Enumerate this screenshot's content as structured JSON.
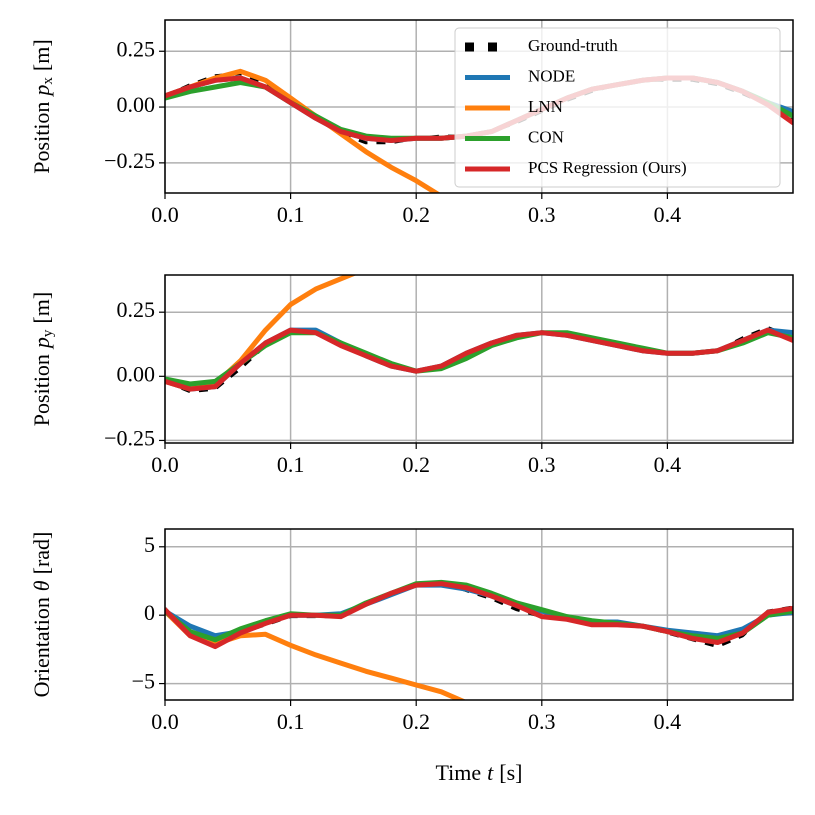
{
  "chart_data": [
    {
      "type": "line",
      "ylabel": {
        "text": "Position",
        "symbol": "p",
        "subscript": "x",
        "unit": "[m]"
      },
      "x": [
        0,
        0.02,
        0.04,
        0.06,
        0.08,
        0.1,
        0.12,
        0.14,
        0.16,
        0.18,
        0.2,
        0.22,
        0.24,
        0.26,
        0.28,
        0.3,
        0.32,
        0.34,
        0.36,
        0.38,
        0.4,
        0.42,
        0.44,
        0.46,
        0.48,
        0.5
      ],
      "xlim": [
        0,
        0.5
      ],
      "ylim": [
        -0.385,
        0.39
      ],
      "xticks": [
        {
          "value": 0,
          "label": "0.0"
        },
        0.1,
        0.2,
        0.3,
        0.4
      ],
      "yticks": [
        {
          "value": -0.25,
          "label": "−0.25"
        },
        {
          "value": 0,
          "label": "0.00"
        },
        0.25
      ],
      "grid": true,
      "legend": "upper right",
      "series": [
        {
          "name": "Ground-truth",
          "color": "#000000",
          "dashed": true,
          "values": [
            0.05,
            0.1,
            0.14,
            0.15,
            0.1,
            0.02,
            -0.05,
            -0.12,
            -0.16,
            -0.16,
            -0.14,
            -0.13,
            -0.13,
            -0.11,
            -0.07,
            -0.02,
            0.03,
            0.07,
            0.1,
            0.12,
            0.12,
            0.12,
            0.1,
            0.06,
            0.01,
            -0.06
          ]
        },
        {
          "name": "NODE",
          "color": "#1f77b4",
          "values": [
            0.05,
            0.09,
            0.12,
            0.13,
            0.09,
            0.02,
            -0.05,
            -0.11,
            -0.14,
            -0.15,
            -0.14,
            -0.14,
            -0.13,
            -0.11,
            -0.06,
            -0.01,
            0.04,
            0.08,
            0.1,
            0.12,
            0.13,
            0.13,
            0.11,
            0.07,
            0.02,
            -0.02
          ]
        },
        {
          "name": "LNN",
          "color": "#ff7f0e",
          "values": [
            0.05,
            0.09,
            0.13,
            0.16,
            0.12,
            0.04,
            -0.04,
            -0.12,
            -0.2,
            -0.27,
            -0.33,
            -0.4,
            null,
            null,
            null,
            null,
            null,
            null,
            null,
            null,
            null,
            null,
            null,
            null,
            null,
            null
          ]
        },
        {
          "name": "CON",
          "color": "#2ca02c",
          "values": [
            0.04,
            0.07,
            0.09,
            0.11,
            0.09,
            0.02,
            -0.04,
            -0.1,
            -0.13,
            -0.14,
            -0.14,
            -0.14,
            -0.13,
            -0.11,
            -0.06,
            -0.01,
            0.04,
            0.08,
            0.1,
            0.12,
            0.13,
            0.13,
            0.11,
            0.07,
            0.02,
            -0.04
          ]
        },
        {
          "name": "PCS Regression (Ours)",
          "color": "#d62728",
          "values": [
            0.05,
            0.09,
            0.12,
            0.13,
            0.09,
            0.02,
            -0.05,
            -0.11,
            -0.14,
            -0.15,
            -0.14,
            -0.14,
            -0.13,
            -0.11,
            -0.06,
            -0.01,
            0.04,
            0.08,
            0.1,
            0.12,
            0.13,
            0.13,
            0.11,
            0.07,
            0.01,
            -0.07
          ]
        }
      ]
    },
    {
      "type": "line",
      "ylabel": {
        "text": "Position",
        "symbol": "p",
        "subscript": "y",
        "unit": "[m]"
      },
      "x": [
        0,
        0.02,
        0.04,
        0.06,
        0.08,
        0.1,
        0.12,
        0.14,
        0.16,
        0.18,
        0.2,
        0.22,
        0.24,
        0.26,
        0.28,
        0.3,
        0.32,
        0.34,
        0.36,
        0.38,
        0.4,
        0.42,
        0.44,
        0.46,
        0.48,
        0.5
      ],
      "xlim": [
        0,
        0.5
      ],
      "ylim": [
        -0.26,
        0.395
      ],
      "xticks": [
        {
          "value": 0,
          "label": "0.0"
        },
        0.1,
        0.2,
        0.3,
        0.4
      ],
      "yticks": [
        {
          "value": -0.25,
          "label": "−0.25"
        },
        {
          "value": 0,
          "label": "0.00"
        },
        0.25
      ],
      "grid": true,
      "series": [
        {
          "name": "Ground-truth",
          "color": "#000000",
          "dashed": true,
          "values": [
            -0.02,
            -0.06,
            -0.05,
            0.03,
            0.12,
            0.18,
            0.17,
            0.12,
            0.08,
            0.04,
            0.02,
            0.04,
            0.09,
            0.13,
            0.16,
            0.17,
            0.16,
            0.14,
            0.12,
            0.1,
            0.09,
            0.09,
            0.1,
            0.15,
            0.19,
            0.15
          ]
        },
        {
          "name": "NODE",
          "color": "#1f77b4",
          "values": [
            -0.02,
            -0.05,
            -0.04,
            0.05,
            0.13,
            0.18,
            0.18,
            0.13,
            0.08,
            0.04,
            0.02,
            0.04,
            0.09,
            0.13,
            0.16,
            0.17,
            0.16,
            0.14,
            0.12,
            0.1,
            0.09,
            0.09,
            0.1,
            0.14,
            0.18,
            0.17
          ]
        },
        {
          "name": "LNN",
          "color": "#ff7f0e",
          "values": [
            -0.02,
            -0.05,
            -0.03,
            0.06,
            0.18,
            0.28,
            0.34,
            0.38,
            0.42,
            null,
            null,
            null,
            null,
            null,
            null,
            null,
            null,
            null,
            null,
            null,
            null,
            null,
            null,
            null,
            null,
            null
          ]
        },
        {
          "name": "CON",
          "color": "#2ca02c",
          "values": [
            -0.01,
            -0.03,
            -0.02,
            0.05,
            0.12,
            0.17,
            0.17,
            0.13,
            0.09,
            0.05,
            0.02,
            0.03,
            0.07,
            0.12,
            0.15,
            0.17,
            0.17,
            0.15,
            0.13,
            0.11,
            0.09,
            0.09,
            0.1,
            0.13,
            0.17,
            0.15
          ]
        },
        {
          "name": "PCS Regression (Ours)",
          "color": "#d62728",
          "values": [
            -0.02,
            -0.05,
            -0.04,
            0.05,
            0.13,
            0.18,
            0.17,
            0.12,
            0.08,
            0.04,
            0.02,
            0.04,
            0.09,
            0.13,
            0.16,
            0.17,
            0.16,
            0.14,
            0.12,
            0.1,
            0.09,
            0.09,
            0.1,
            0.14,
            0.18,
            0.14
          ]
        }
      ]
    },
    {
      "type": "line",
      "ylabel": {
        "text": "Orientation",
        "symbol": "θ",
        "unit": "[rad]"
      },
      "xlabel": {
        "text": "Time",
        "symbol": "t",
        "unit": "[s]"
      },
      "x": [
        0,
        0.02,
        0.04,
        0.06,
        0.08,
        0.1,
        0.12,
        0.14,
        0.16,
        0.18,
        0.2,
        0.22,
        0.24,
        0.26,
        0.28,
        0.3,
        0.32,
        0.34,
        0.36,
        0.38,
        0.4,
        0.42,
        0.44,
        0.46,
        0.48,
        0.5
      ],
      "xlim": [
        0,
        0.5
      ],
      "ylim": [
        -6.2,
        6.3
      ],
      "xticks": [
        {
          "value": 0,
          "label": "0.0"
        },
        0.1,
        0.2,
        0.3,
        0.4
      ],
      "yticks": [
        {
          "value": -5,
          "label": "−5"
        },
        0,
        5
      ],
      "grid": true,
      "series": [
        {
          "name": "Ground-truth",
          "color": "#000000",
          "dashed": true,
          "values": [
            0.5,
            -1.5,
            -2.3,
            -1.3,
            -0.7,
            -0.1,
            -0.1,
            -0.1,
            0.8,
            1.6,
            2.3,
            2.4,
            1.8,
            1.2,
            0.4,
            -0.1,
            -0.3,
            -0.6,
            -0.6,
            -0.8,
            -1.3,
            -1.8,
            -2.3,
            -1.5,
            0.3,
            0.6
          ]
        },
        {
          "name": "NODE",
          "color": "#1f77b4",
          "values": [
            0.3,
            -0.8,
            -1.5,
            -1.2,
            -0.5,
            0.0,
            0.0,
            0.1,
            0.8,
            1.5,
            2.2,
            2.2,
            1.9,
            1.4,
            0.7,
            0.3,
            -0.2,
            -0.5,
            -0.5,
            -0.8,
            -1.1,
            -1.3,
            -1.5,
            -1.0,
            0.0,
            0.2
          ]
        },
        {
          "name": "LNN",
          "color": "#ff7f0e",
          "values": [
            0.3,
            -1.5,
            -2.1,
            -1.5,
            -1.4,
            -2.2,
            -2.9,
            -3.5,
            -4.1,
            -4.6,
            -5.1,
            -5.6,
            -6.4,
            null,
            null,
            null,
            null,
            null,
            null,
            null,
            null,
            null,
            null,
            null,
            null,
            null
          ]
        },
        {
          "name": "CON",
          "color": "#2ca02c",
          "values": [
            0.3,
            -1.2,
            -1.8,
            -1.0,
            -0.4,
            0.1,
            0.0,
            0.0,
            0.9,
            1.6,
            2.3,
            2.4,
            2.2,
            1.6,
            0.9,
            0.4,
            -0.1,
            -0.4,
            -0.6,
            -0.8,
            -1.2,
            -1.5,
            -1.7,
            -1.3,
            0.0,
            0.3
          ]
        },
        {
          "name": "PCS Regression (Ours)",
          "color": "#d62728",
          "values": [
            0.4,
            -1.5,
            -2.3,
            -1.3,
            -0.6,
            0.0,
            0.0,
            -0.1,
            0.8,
            1.6,
            2.2,
            2.3,
            2.0,
            1.4,
            0.7,
            -0.1,
            -0.3,
            -0.7,
            -0.7,
            -0.8,
            -1.2,
            -1.7,
            -2.0,
            -1.3,
            0.2,
            0.5
          ]
        }
      ]
    }
  ]
}
